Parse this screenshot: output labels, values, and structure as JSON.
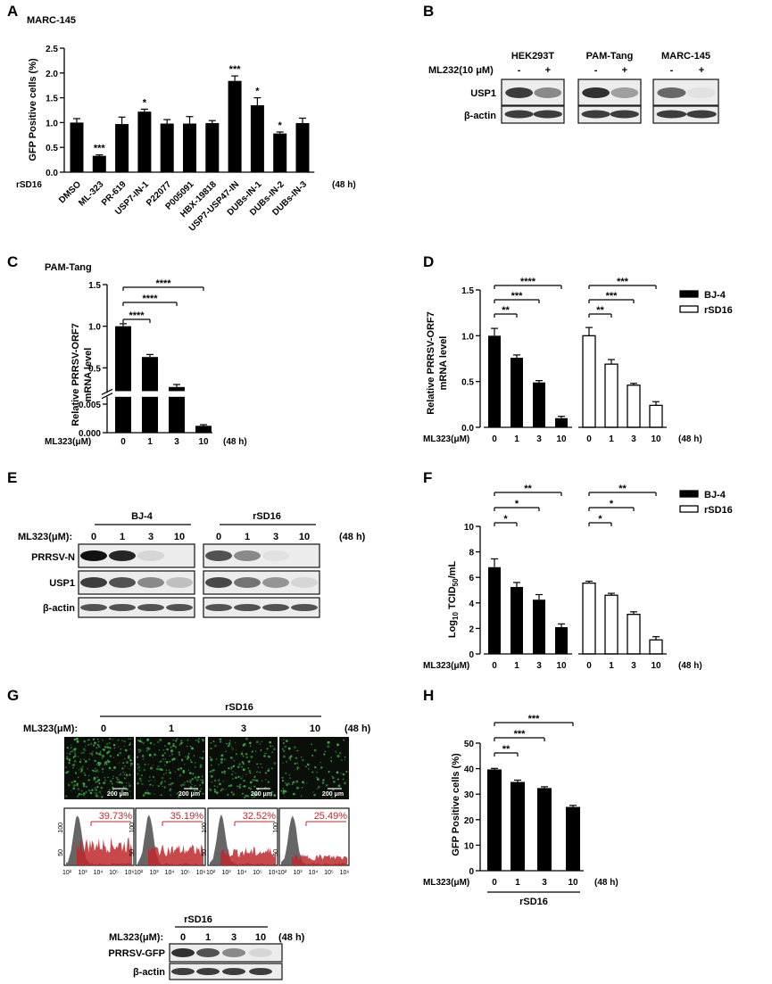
{
  "panel_labels": [
    "A",
    "B",
    "C",
    "D",
    "E",
    "F",
    "G",
    "H"
  ],
  "chart_data": [
    {
      "panel": "A",
      "type": "bar",
      "title": "MARC-145",
      "ylabel": "GFP Positive cells (%)",
      "ylim": [
        0,
        2.5
      ],
      "yticks": [
        "0.0",
        "0.5",
        "1.0",
        "1.5",
        "2.0",
        "2.5"
      ],
      "row_label": "rSD16",
      "time_label": "(48 h)",
      "categories": [
        "DMSO",
        "ML-323",
        "PR-619",
        "USP7-IN-1",
        "P22077",
        "P005091",
        "HBX-19818",
        "USP7-USP47-IN",
        "DUBs-IN-1",
        "DUBs-IN-2",
        "DUBs-IN-3"
      ],
      "values": [
        1.0,
        0.33,
        0.97,
        1.22,
        0.98,
        0.98,
        0.99,
        1.84,
        1.35,
        0.78,
        0.99
      ],
      "errors": [
        0.08,
        0.02,
        0.14,
        0.05,
        0.08,
        0.14,
        0.05,
        0.1,
        0.15,
        0.03,
        0.1
      ],
      "significance": [
        "",
        "***",
        "",
        "*",
        "",
        "",
        "",
        "***",
        "*",
        "*",
        ""
      ]
    },
    {
      "panel": "C",
      "type": "bar",
      "title": "PAM-Tang",
      "ylabel_lines": [
        "Relative PRRSV-ORF7",
        "mRNA level"
      ],
      "xlabel": "ML323(μM)",
      "time_label": "(48 h)",
      "categories": [
        "0",
        "1",
        "3",
        "10"
      ],
      "values": [
        1.0,
        0.63,
        0.27,
        0.0012
      ],
      "errors": [
        0.03,
        0.03,
        0.03,
        0.0002
      ],
      "yticks_upper": [
        "0.5",
        "1.0",
        "1.5"
      ],
      "yticks_lower": [
        "0.000",
        "0.005"
      ],
      "brackets": [
        {
          "from": "0",
          "to": "1",
          "label": "****"
        },
        {
          "from": "0",
          "to": "3",
          "label": "****"
        },
        {
          "from": "0",
          "to": "10",
          "label": "****"
        }
      ]
    },
    {
      "panel": "D",
      "type": "bar",
      "ylabel_lines": [
        "Relative PRRSV-ORF7",
        "mRNA level"
      ],
      "xlabel": "ML323(μM)",
      "time_label": "(48 h)",
      "ylim": [
        0,
        1.5
      ],
      "yticks": [
        "0.0",
        "0.5",
        "1.0",
        "1.5"
      ],
      "categories": [
        "0",
        "1",
        "3",
        "10"
      ],
      "legend": [
        "BJ-4",
        "rSD16"
      ],
      "series": [
        {
          "name": "BJ-4",
          "values": [
            1.0,
            0.76,
            0.49,
            0.1
          ],
          "errors": [
            0.08,
            0.03,
            0.02,
            0.02
          ]
        },
        {
          "name": "rSD16",
          "values": [
            1.0,
            0.69,
            0.46,
            0.24
          ],
          "errors": [
            0.09,
            0.05,
            0.02,
            0.04
          ]
        }
      ],
      "brackets": [
        {
          "series": 0,
          "from": "0",
          "to": "1",
          "label": "**"
        },
        {
          "series": 0,
          "from": "0",
          "to": "3",
          "label": "***"
        },
        {
          "series": 0,
          "from": "0",
          "to": "10",
          "label": "****"
        },
        {
          "series": 1,
          "from": "0",
          "to": "1",
          "label": "**"
        },
        {
          "series": 1,
          "from": "0",
          "to": "3",
          "label": "***"
        },
        {
          "series": 1,
          "from": "0",
          "to": "10",
          "label": "***"
        }
      ]
    },
    {
      "panel": "F",
      "type": "bar",
      "ylabel": "Log10 TCID50/mL",
      "xlabel": "ML323(μM)",
      "time_label": "(48 h)",
      "ylim": [
        0,
        10
      ],
      "yticks": [
        "0",
        "2",
        "4",
        "6",
        "8",
        "10"
      ],
      "categories": [
        "0",
        "1",
        "3",
        "10"
      ],
      "legend": [
        "BJ-4",
        "rSD16"
      ],
      "series": [
        {
          "name": "BJ-4",
          "values": [
            6.8,
            5.25,
            4.25,
            2.1
          ],
          "errors": [
            0.65,
            0.35,
            0.4,
            0.25
          ]
        },
        {
          "name": "rSD16",
          "values": [
            5.55,
            4.6,
            3.1,
            1.1
          ],
          "errors": [
            0.15,
            0.15,
            0.2,
            0.25
          ]
        }
      ],
      "brackets": [
        {
          "series": 0,
          "from": "0",
          "to": "1",
          "label": "*"
        },
        {
          "series": 0,
          "from": "0",
          "to": "3",
          "label": "*"
        },
        {
          "series": 0,
          "from": "0",
          "to": "10",
          "label": "**"
        },
        {
          "series": 1,
          "from": "0",
          "to": "1",
          "label": "*"
        },
        {
          "series": 1,
          "from": "0",
          "to": "3",
          "label": "*"
        },
        {
          "series": 1,
          "from": "0",
          "to": "10",
          "label": "**"
        }
      ]
    },
    {
      "panel": "H",
      "type": "bar",
      "ylabel": "GFP Positive cells (%)",
      "xlabel": "ML323(μM)",
      "time_label": "(48 h)",
      "group_label": "rSD16",
      "ylim": [
        0,
        50
      ],
      "yticks": [
        "0",
        "10",
        "20",
        "30",
        "40",
        "50"
      ],
      "categories": [
        "0",
        "1",
        "3",
        "10"
      ],
      "values": [
        39.7,
        34.8,
        32.4,
        25.0
      ],
      "errors": [
        0.4,
        0.7,
        0.5,
        0.6
      ],
      "brackets": [
        {
          "from": "0",
          "to": "1",
          "label": "**"
        },
        {
          "from": "0",
          "to": "3",
          "label": "***"
        },
        {
          "from": "0",
          "to": "10",
          "label": "***"
        }
      ]
    }
  ],
  "panel_b": {
    "cell_lines": [
      "HEK293T",
      "PAM-Tang",
      "MARC-145"
    ],
    "treatment": "ML232(10 μM)",
    "lane_signs": [
      "-",
      "+"
    ],
    "bands": [
      "USP1",
      "β-actin"
    ],
    "usp1_levels": [
      [
        0.8,
        0.45
      ],
      [
        0.85,
        0.35
      ],
      [
        0.6,
        0.05
      ]
    ]
  },
  "panel_e": {
    "groups": [
      "BJ-4",
      "rSD16"
    ],
    "treatment": "ML323(μM):",
    "doses": [
      "0",
      "1",
      "3",
      "10"
    ],
    "time_label": "(48 h)",
    "bands": [
      "PRRSV-N",
      "USP1",
      "β-actin"
    ],
    "levels": {
      "PRRSV-N": [
        [
          1.0,
          0.9,
          0.1,
          0.0
        ],
        [
          0.7,
          0.45,
          0.05,
          0.0
        ]
      ],
      "USP1": [
        [
          0.8,
          0.7,
          0.45,
          0.2
        ],
        [
          0.75,
          0.55,
          0.4,
          0.1
        ]
      ],
      "β-actin": [
        [
          0.7,
          0.7,
          0.7,
          0.7
        ],
        [
          0.7,
          0.7,
          0.7,
          0.7
        ]
      ]
    }
  },
  "panel_g": {
    "virus": "rSD16",
    "treatment": "ML323(μM):",
    "doses": [
      "0",
      "1",
      "3",
      "10"
    ],
    "time_label": "(48 h)",
    "scale_bar": "200 μm",
    "fluorescence_density": [
      1.0,
      0.75,
      0.65,
      0.4
    ],
    "flow_percentages": [
      "39.73%",
      "35.19%",
      "32.52%",
      "25.49%"
    ],
    "flow_y_ticks": [
      "50",
      "100"
    ],
    "flow_x_ticks": [
      "10²",
      "10³",
      "10⁴",
      "10⁵",
      "10⁶"
    ],
    "blot_bands": [
      "PRRSV-GFP",
      "β-actin"
    ],
    "gfp_levels": [
      0.85,
      0.7,
      0.45,
      0.1
    ],
    "accent_color": "#c0282d",
    "fluorescence_color": "#3fae4a"
  }
}
